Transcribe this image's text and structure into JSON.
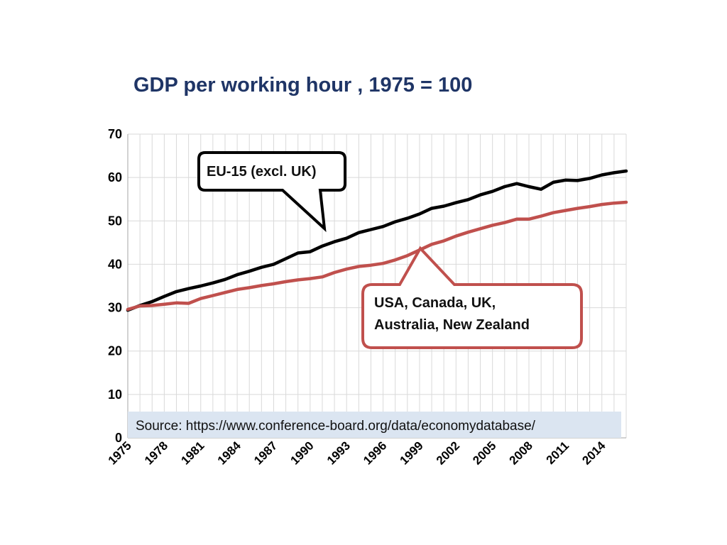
{
  "chart_data": {
    "type": "line",
    "title": "GDP per working hour , 1975 = 100",
    "x": [
      1975,
      1976,
      1977,
      1978,
      1979,
      1980,
      1981,
      1982,
      1983,
      1984,
      1985,
      1986,
      1987,
      1988,
      1989,
      1990,
      1991,
      1992,
      1993,
      1994,
      1995,
      1996,
      1997,
      1998,
      1999,
      2000,
      2001,
      2002,
      2003,
      2004,
      2005,
      2006,
      2007,
      2008,
      2009,
      2010,
      2011,
      2012,
      2013,
      2014,
      2015,
      2016
    ],
    "x_tick_labels": [
      "1975",
      "1978",
      "1981",
      "1984",
      "1987",
      "1990",
      "1993",
      "1996",
      "1999",
      "2002",
      "2005",
      "2008",
      "2011",
      "2014"
    ],
    "ylim": [
      0,
      70
    ],
    "y_ticks": [
      0,
      10,
      20,
      30,
      40,
      50,
      60,
      70
    ],
    "grid": true,
    "series": [
      {
        "name": "EU-15 (excl. UK)",
        "color": "#000000",
        "values": [
          29.4,
          30.5,
          31.4,
          32.6,
          33.7,
          34.4,
          35.0,
          35.7,
          36.5,
          37.6,
          38.4,
          39.3,
          40.0,
          41.3,
          42.6,
          42.9,
          44.2,
          45.2,
          46.0,
          47.3,
          48.0,
          48.7,
          49.8,
          50.6,
          51.6,
          52.9,
          53.4,
          54.2,
          54.9,
          56.0,
          56.8,
          57.9,
          58.6,
          57.9,
          57.3,
          58.9,
          59.4,
          59.3,
          59.8,
          60.6,
          61.1,
          61.5
        ]
      },
      {
        "name": "USA, Canada, UK, Australia, New Zealand",
        "color": "#c0504d",
        "values": [
          29.6,
          30.4,
          30.5,
          30.8,
          31.1,
          31.0,
          32.1,
          32.8,
          33.5,
          34.2,
          34.6,
          35.1,
          35.5,
          36.0,
          36.4,
          36.7,
          37.1,
          38.1,
          38.9,
          39.5,
          39.8,
          40.2,
          41.0,
          42.0,
          43.3,
          44.6,
          45.4,
          46.5,
          47.4,
          48.2,
          49.0,
          49.6,
          50.4,
          50.4,
          51.1,
          51.9,
          52.4,
          52.9,
          53.3,
          53.8,
          54.1,
          54.3
        ]
      }
    ],
    "annotations": {
      "eu_callout": "EU-15 (excl. UK)",
      "anglo_callout_line1": "USA, Canada, UK,",
      "anglo_callout_line2": "Australia, New Zealand"
    },
    "source": "Source: https://www.conference-board.org/data/economydatabase/"
  }
}
